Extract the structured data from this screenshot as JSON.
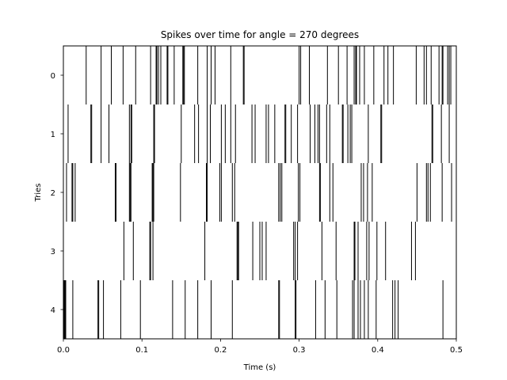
{
  "chart_data": {
    "type": "eventplot",
    "title": "Spikes over time for angle = 270 degrees",
    "xlabel": "Time (s)",
    "ylabel": "Tries",
    "xlim": [
      0,
      0.5
    ],
    "x_ticks": [
      "0.0",
      "0.1",
      "0.2",
      "0.3",
      "0.4",
      "0.5"
    ],
    "y_ticks": [
      "0",
      "1",
      "2",
      "3",
      "4"
    ],
    "y_inverted": true,
    "grid": false,
    "legend": "none",
    "line_color": "#000000",
    "series": [
      {
        "try": "0",
        "spikes": [
          0.029,
          0.048,
          0.061,
          0.076,
          0.092,
          0.111,
          0.118,
          0.119,
          0.121,
          0.124,
          0.132,
          0.133,
          0.141,
          0.152,
          0.153,
          0.154,
          0.171,
          0.183,
          0.188,
          0.193,
          0.213,
          0.229,
          0.23,
          0.3,
          0.302,
          0.313,
          0.336,
          0.35,
          0.361,
          0.37,
          0.372,
          0.373,
          0.377,
          0.383,
          0.395,
          0.408,
          0.413,
          0.42,
          0.449,
          0.459,
          0.462,
          0.468,
          0.478,
          0.482,
          0.483,
          0.489,
          0.491,
          0.493
        ]
      },
      {
        "try": "1",
        "spikes": [
          0.006,
          0.035,
          0.036,
          0.048,
          0.058,
          0.084,
          0.086,
          0.087,
          0.115,
          0.116,
          0.15,
          0.167,
          0.172,
          0.183,
          0.187,
          0.201,
          0.206,
          0.213,
          0.219,
          0.24,
          0.244,
          0.258,
          0.261,
          0.269,
          0.282,
          0.283,
          0.29,
          0.298,
          0.314,
          0.32,
          0.324,
          0.326,
          0.335,
          0.339,
          0.355,
          0.356,
          0.362,
          0.365,
          0.367,
          0.388,
          0.404,
          0.405,
          0.469,
          0.47,
          0.481,
          0.491
        ]
      },
      {
        "try": "2",
        "spikes": [
          0.004,
          0.011,
          0.012,
          0.015,
          0.066,
          0.067,
          0.084,
          0.085,
          0.086,
          0.113,
          0.114,
          0.115,
          0.149,
          0.182,
          0.183,
          0.199,
          0.201,
          0.215,
          0.218,
          0.274,
          0.276,
          0.278,
          0.299,
          0.301,
          0.326,
          0.327,
          0.339,
          0.343,
          0.379,
          0.382,
          0.387,
          0.393,
          0.45,
          0.462,
          0.464,
          0.467,
          0.482,
          0.494
        ]
      },
      {
        "try": "3",
        "spikes": [
          0.077,
          0.089,
          0.11,
          0.111,
          0.114,
          0.18,
          0.221,
          0.222,
          0.223,
          0.241,
          0.25,
          0.253,
          0.258,
          0.293,
          0.295,
          0.298,
          0.329,
          0.347,
          0.37,
          0.371,
          0.375,
          0.386,
          0.389,
          0.399,
          0.41,
          0.443,
          0.448
        ]
      },
      {
        "try": "4",
        "spikes": [
          0.001,
          0.002,
          0.003,
          0.012,
          0.044,
          0.045,
          0.051,
          0.073,
          0.098,
          0.139,
          0.155,
          0.171,
          0.188,
          0.215,
          0.274,
          0.275,
          0.295,
          0.296,
          0.321,
          0.333,
          0.348,
          0.368,
          0.37,
          0.375,
          0.378,
          0.383,
          0.388,
          0.398,
          0.419,
          0.422,
          0.426,
          0.483
        ]
      }
    ]
  }
}
